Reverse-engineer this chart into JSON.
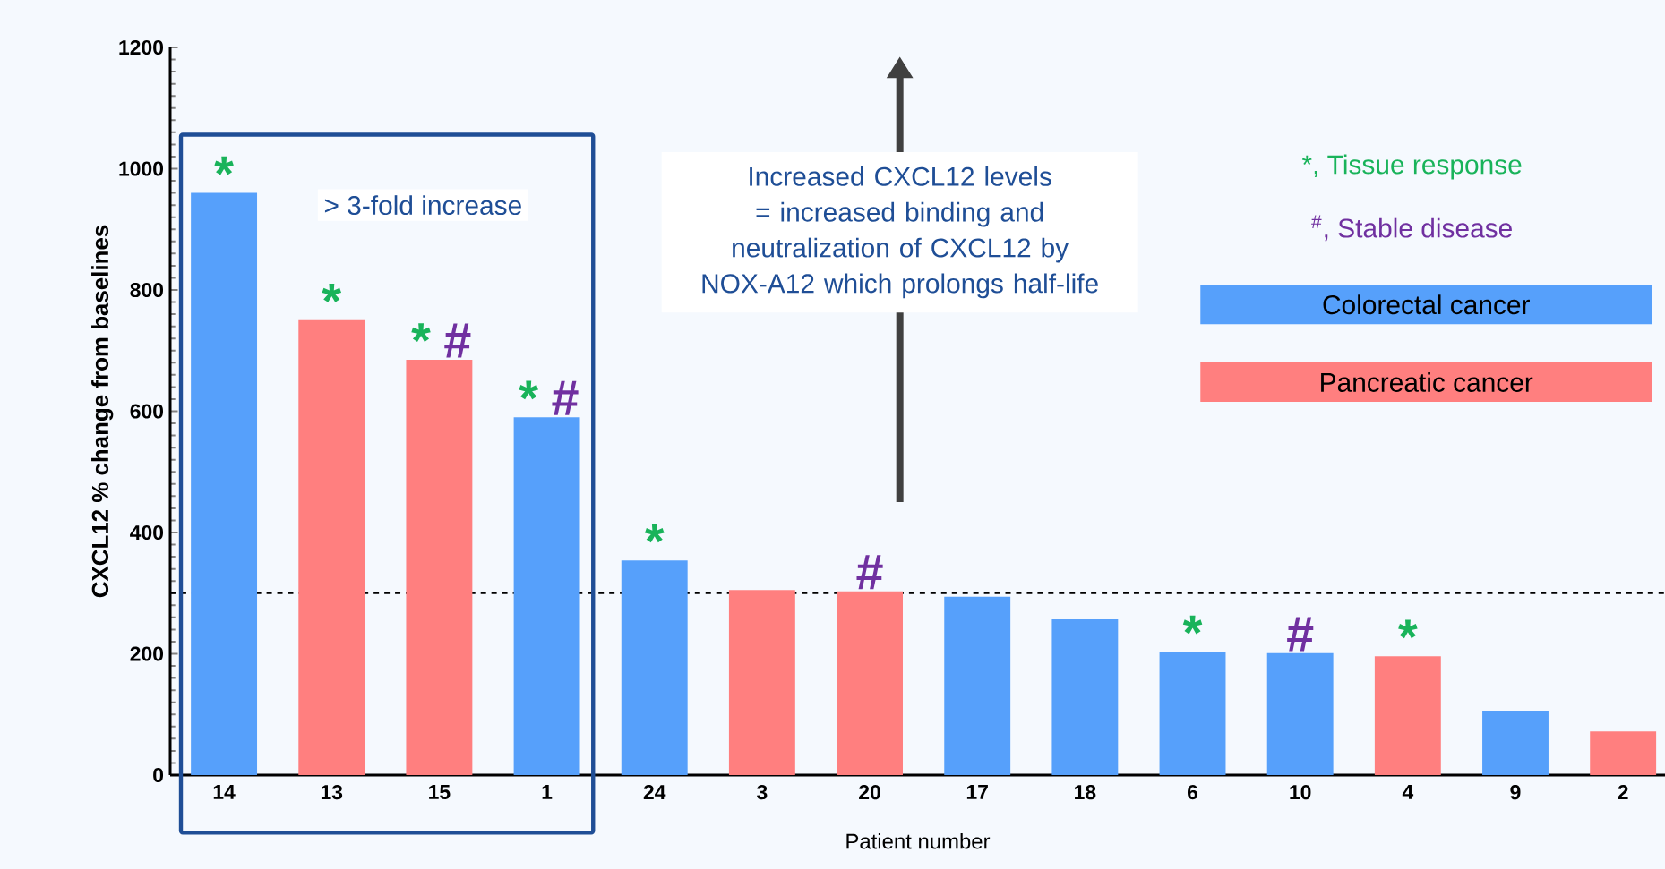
{
  "chart_data": {
    "type": "bar",
    "ylabel": "CXCL12 % change from baselines",
    "xlabel": "Patient number",
    "categories": [
      "14",
      "13",
      "15",
      "1",
      "24",
      "3",
      "20",
      "17",
      "18",
      "6",
      "10",
      "4",
      "9",
      "2"
    ],
    "series": [
      {
        "name": "Colorectal cancer",
        "color": "#56a0fb",
        "values": [
          960,
          null,
          null,
          590,
          354,
          null,
          null,
          294,
          257,
          203,
          201,
          null,
          105,
          null
        ]
      },
      {
        "name": "Pancreatic cancer",
        "color": "#ff7f7f",
        "values": [
          null,
          750,
          685,
          null,
          null,
          305,
          303,
          null,
          null,
          null,
          null,
          196,
          null,
          72
        ]
      }
    ],
    "ylim": [
      0,
      1200
    ],
    "yticks": [
      0,
      200,
      400,
      600,
      800,
      1000,
      1200
    ],
    "ref_lines": [
      {
        "axis": "y",
        "value": 300,
        "color": "#000000",
        "line_style": "dashed"
      }
    ],
    "legend": "top right",
    "annotations": [
      {
        "text": "*",
        "x": "14",
        "y": 960
      },
      {
        "text": "*",
        "x": "13",
        "y": 750
      },
      {
        "text": "*",
        "x": "15",
        "y": 685
      },
      {
        "text": "#",
        "x": "15",
        "y": 685
      },
      {
        "text": "*",
        "x": "1",
        "y": 590
      },
      {
        "text": "#",
        "x": "1",
        "y": 590
      },
      {
        "text": "*",
        "x": "24",
        "y": 354
      },
      {
        "text": "#",
        "x": "20",
        "y": 303
      },
      {
        "text": "*",
        "x": "6",
        "y": 203
      },
      {
        "text": "#",
        "x": "10",
        "y": 201
      },
      {
        "text": "*",
        "x": "4",
        "y": 196
      },
      "> 3-fold increase",
      "Increased CXCL12 levels = increased binding and neutralization of CXCL12 by NOX-A12 which prolongs half-life",
      "*, Tissue response",
      "$^{#}$, Stable disease"
    ]
  }
}
